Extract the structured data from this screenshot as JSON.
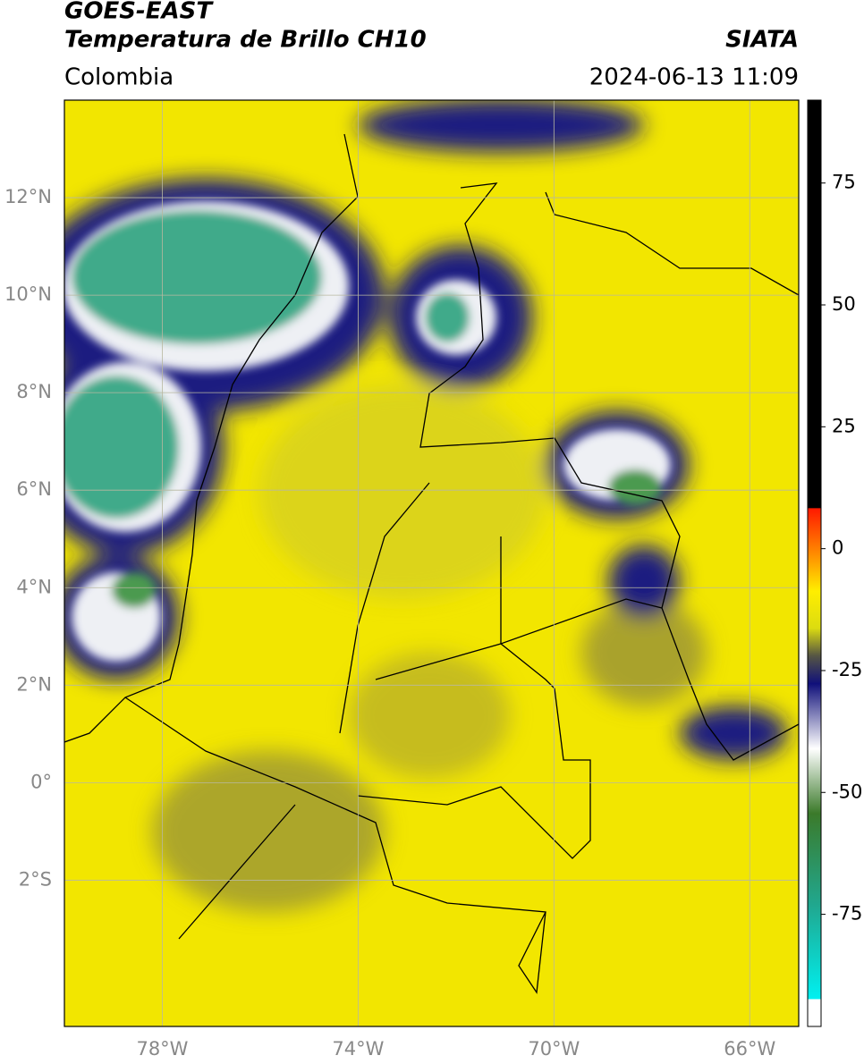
{
  "header": {
    "title_line1": "GOES-EAST",
    "title_line2": "Temperatura de Brillo CH10",
    "source": "SIATA",
    "region": "Colombia",
    "timestamp": "2024-06-13 11:09"
  },
  "map": {
    "xlim": [
      -80,
      -65
    ],
    "ylim": [
      -5,
      14
    ],
    "xticks": [
      {
        "value": -78,
        "label": "78°W"
      },
      {
        "value": -74,
        "label": "74°W"
      },
      {
        "value": -70,
        "label": "70°W"
      },
      {
        "value": -66,
        "label": "66°W"
      }
    ],
    "yticks": [
      {
        "value": 12,
        "label": "12°N"
      },
      {
        "value": 10,
        "label": "10°N"
      },
      {
        "value": 8,
        "label": "8°N"
      },
      {
        "value": 6,
        "label": "6°N"
      },
      {
        "value": 4,
        "label": "4°N"
      },
      {
        "value": 2,
        "label": "2°N"
      },
      {
        "value": 0,
        "label": "0°"
      },
      {
        "value": -2,
        "label": "2°S"
      }
    ],
    "grid": true
  },
  "colorbar": {
    "lim": [
      -98,
      92
    ],
    "ticks": [
      75,
      50,
      25,
      0,
      -25,
      -50,
      -75
    ]
  }
}
